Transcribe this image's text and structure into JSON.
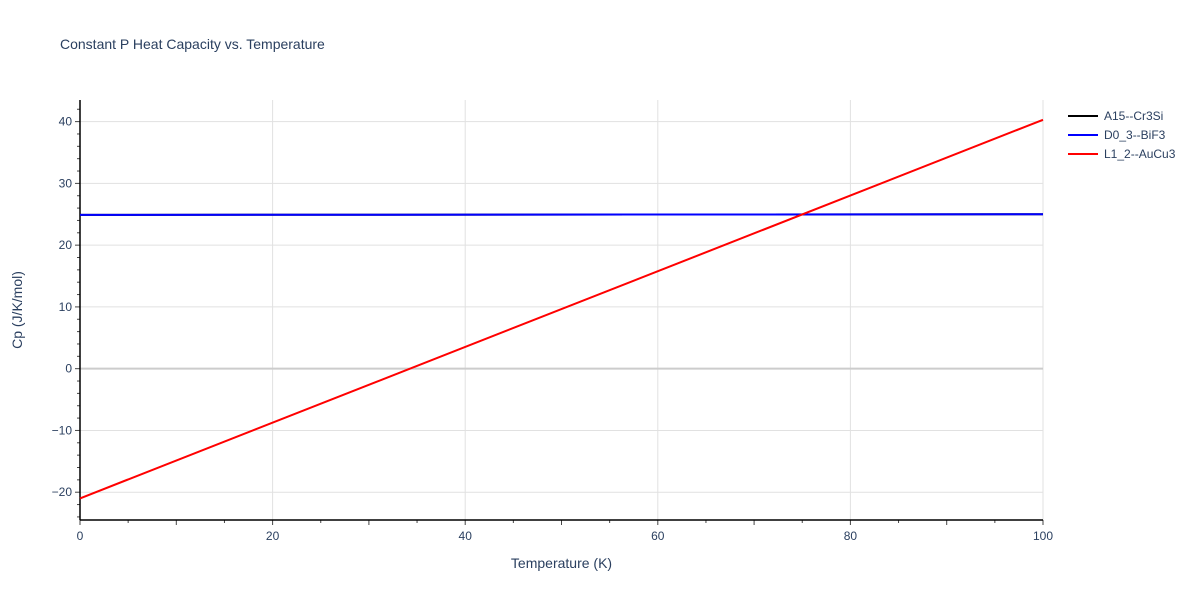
{
  "chart_data": {
    "type": "line",
    "title": "Constant P Heat Capacity vs. Temperature",
    "xlabel": "Temperature (K)",
    "ylabel": "Cp (J/K/mol)",
    "xlim": [
      0,
      100
    ],
    "ylim": [
      -24.5,
      43.5
    ],
    "xticks": [
      0,
      20,
      40,
      60,
      80,
      100
    ],
    "yticks": [
      -20,
      -10,
      0,
      10,
      20,
      30,
      40
    ],
    "grid": true,
    "legend_position": "right-top",
    "series": [
      {
        "name": "A15--Cr3Si",
        "color": "#000000",
        "x": [
          0,
          100
        ],
        "y": [
          24.9,
          25.0
        ]
      },
      {
        "name": "D0_3--BiF3",
        "color": "#0000ff",
        "x": [
          0,
          100
        ],
        "y": [
          24.9,
          25.0
        ]
      },
      {
        "name": "L1_2--AuCu3",
        "color": "#ff0000",
        "x": [
          0,
          100
        ],
        "y": [
          -21.0,
          40.3
        ]
      }
    ]
  },
  "labels": {
    "title": "Constant P Heat Capacity vs. Temperature",
    "xlabel": "Temperature (K)",
    "ylabel": "Cp (J/K/mol)"
  },
  "legend": [
    {
      "label": "A15--Cr3Si",
      "color": "#000000"
    },
    {
      "label": "D0_3--BiF3",
      "color": "#0000ff"
    },
    {
      "label": "L1_2--AuCu3",
      "color": "#ff0000"
    }
  ]
}
